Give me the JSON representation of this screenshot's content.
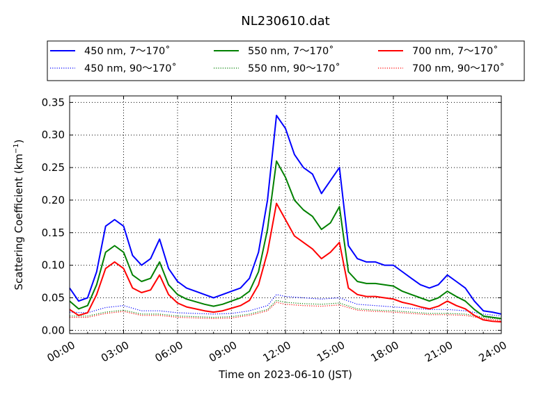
{
  "chart_data": {
    "type": "line",
    "title": "NL230610.dat",
    "xlabel": "Time on 2023-06-10 (JST)",
    "ylabel": "Scattering Coefficient (km",
    "ylabel_sup": "−1",
    "ylabel_close": ")",
    "xlim": [
      "00:00",
      "24:00"
    ],
    "ylim": [
      -0.005,
      0.36
    ],
    "x_tick_labels": [
      "00:00",
      "03:00",
      "06:00",
      "09:00",
      "12:00",
      "15:00",
      "18:00",
      "21:00",
      "24:00"
    ],
    "y_tick_labels": [
      "0.00",
      "0.05",
      "0.10",
      "0.15",
      "0.20",
      "0.25",
      "0.30",
      "0.35"
    ],
    "grid": true,
    "legend_position": "top, above plot",
    "legend_columns": 3,
    "series": [
      {
        "name": "450 nm, 7～170˚",
        "color": "#0000ff",
        "style": "solid",
        "x": [
          "00:00",
          "00:30",
          "01:00",
          "01:30",
          "02:00",
          "02:30",
          "03:00",
          "03:30",
          "04:00",
          "04:30",
          "05:00",
          "05:30",
          "06:00",
          "06:30",
          "07:00",
          "07:30",
          "08:00",
          "08:30",
          "09:00",
          "09:30",
          "10:00",
          "10:30",
          "11:00",
          "11:30",
          "12:00",
          "12:30",
          "13:00",
          "13:30",
          "14:00",
          "14:30",
          "15:00",
          "15:30",
          "16:00",
          "16:30",
          "17:00",
          "17:30",
          "18:00",
          "18:30",
          "19:00",
          "19:30",
          "20:00",
          "20:30",
          "21:00",
          "21:30",
          "22:00",
          "22:30",
          "23:00",
          "23:30",
          "24:00"
        ],
        "values": [
          0.065,
          0.045,
          0.05,
          0.09,
          0.16,
          0.17,
          0.16,
          0.115,
          0.1,
          0.11,
          0.14,
          0.095,
          0.075,
          0.065,
          0.06,
          0.055,
          0.05,
          0.055,
          0.06,
          0.065,
          0.08,
          0.12,
          0.2,
          0.33,
          0.31,
          0.27,
          0.25,
          0.24,
          0.21,
          0.23,
          0.25,
          0.13,
          0.11,
          0.105,
          0.105,
          0.1,
          0.1,
          0.09,
          0.08,
          0.07,
          0.065,
          0.07,
          0.085,
          0.075,
          0.065,
          0.045,
          0.03,
          0.028,
          0.025
        ]
      },
      {
        "name": "550 nm, 7～170˚",
        "color": "#008000",
        "style": "solid",
        "x": [
          "00:00",
          "00:30",
          "01:00",
          "01:30",
          "02:00",
          "02:30",
          "03:00",
          "03:30",
          "04:00",
          "04:30",
          "05:00",
          "05:30",
          "06:00",
          "06:30",
          "07:00",
          "07:30",
          "08:00",
          "08:30",
          "09:00",
          "09:30",
          "10:00",
          "10:30",
          "11:00",
          "11:30",
          "12:00",
          "12:30",
          "13:00",
          "13:30",
          "14:00",
          "14:30",
          "15:00",
          "15:30",
          "16:00",
          "16:30",
          "17:00",
          "17:30",
          "18:00",
          "18:30",
          "19:00",
          "19:30",
          "20:00",
          "20:30",
          "21:00",
          "21:30",
          "22:00",
          "22:30",
          "23:00",
          "23:30",
          "24:00"
        ],
        "values": [
          0.045,
          0.033,
          0.038,
          0.07,
          0.12,
          0.13,
          0.12,
          0.085,
          0.075,
          0.08,
          0.105,
          0.07,
          0.055,
          0.048,
          0.044,
          0.04,
          0.037,
          0.04,
          0.045,
          0.05,
          0.06,
          0.09,
          0.155,
          0.26,
          0.235,
          0.2,
          0.185,
          0.175,
          0.155,
          0.165,
          0.19,
          0.09,
          0.075,
          0.072,
          0.072,
          0.07,
          0.068,
          0.06,
          0.055,
          0.05,
          0.045,
          0.05,
          0.06,
          0.052,
          0.045,
          0.032,
          0.022,
          0.02,
          0.018
        ]
      },
      {
        "name": "700 nm, 7～170˚",
        "color": "#ff0000",
        "style": "solid",
        "x": [
          "00:00",
          "00:30",
          "01:00",
          "01:30",
          "02:00",
          "02:30",
          "03:00",
          "03:30",
          "04:00",
          "04:30",
          "05:00",
          "05:30",
          "06:00",
          "06:30",
          "07:00",
          "07:30",
          "08:00",
          "08:30",
          "09:00",
          "09:30",
          "10:00",
          "10:30",
          "11:00",
          "11:30",
          "12:00",
          "12:30",
          "13:00",
          "13:30",
          "14:00",
          "14:30",
          "15:00",
          "15:30",
          "16:00",
          "16:30",
          "17:00",
          "17:30",
          "18:00",
          "18:30",
          "19:00",
          "19:30",
          "20:00",
          "20:30",
          "21:00",
          "21:30",
          "22:00",
          "22:30",
          "23:00",
          "23:30",
          "24:00"
        ],
        "values": [
          0.032,
          0.023,
          0.027,
          0.055,
          0.095,
          0.105,
          0.095,
          0.065,
          0.058,
          0.062,
          0.085,
          0.055,
          0.042,
          0.036,
          0.033,
          0.03,
          0.028,
          0.03,
          0.034,
          0.038,
          0.046,
          0.07,
          0.12,
          0.195,
          0.17,
          0.145,
          0.135,
          0.125,
          0.11,
          0.12,
          0.135,
          0.065,
          0.055,
          0.052,
          0.052,
          0.05,
          0.048,
          0.043,
          0.04,
          0.036,
          0.033,
          0.037,
          0.045,
          0.038,
          0.033,
          0.023,
          0.016,
          0.014,
          0.013
        ]
      },
      {
        "name": "450 nm, 90～170˚",
        "color": "#0000ff",
        "style": "dotted",
        "x": [
          "00:00",
          "01:00",
          "02:00",
          "03:00",
          "04:00",
          "05:00",
          "06:00",
          "07:00",
          "08:00",
          "09:00",
          "10:00",
          "11:00",
          "11:30",
          "12:00",
          "13:00",
          "14:00",
          "15:00",
          "16:00",
          "17:00",
          "18:00",
          "19:00",
          "20:00",
          "21:00",
          "22:00",
          "23:00",
          "24:00"
        ],
        "values": [
          0.028,
          0.027,
          0.035,
          0.038,
          0.03,
          0.03,
          0.027,
          0.026,
          0.025,
          0.026,
          0.03,
          0.038,
          0.055,
          0.052,
          0.05,
          0.048,
          0.05,
          0.04,
          0.038,
          0.036,
          0.034,
          0.032,
          0.032,
          0.03,
          0.025,
          0.022
        ]
      },
      {
        "name": "550 nm, 90～170˚",
        "color": "#008000",
        "style": "dotted",
        "x": [
          "00:00",
          "01:00",
          "02:00",
          "03:00",
          "04:00",
          "05:00",
          "06:00",
          "07:00",
          "08:00",
          "09:00",
          "10:00",
          "11:00",
          "11:30",
          "12:00",
          "13:00",
          "14:00",
          "15:00",
          "16:00",
          "17:00",
          "18:00",
          "19:00",
          "20:00",
          "21:00",
          "22:00",
          "23:00",
          "24:00"
        ],
        "values": [
          0.022,
          0.022,
          0.028,
          0.031,
          0.025,
          0.025,
          0.022,
          0.021,
          0.02,
          0.021,
          0.025,
          0.032,
          0.046,
          0.043,
          0.041,
          0.04,
          0.042,
          0.033,
          0.031,
          0.03,
          0.028,
          0.026,
          0.026,
          0.025,
          0.02,
          0.017
        ]
      },
      {
        "name": "700 nm, 90～170˚",
        "color": "#ff0000",
        "style": "dotted",
        "x": [
          "00:00",
          "01:00",
          "02:00",
          "03:00",
          "04:00",
          "05:00",
          "06:00",
          "07:00",
          "08:00",
          "09:00",
          "10:00",
          "11:00",
          "11:30",
          "12:00",
          "13:00",
          "14:00",
          "15:00",
          "16:00",
          "17:00",
          "18:00",
          "19:00",
          "20:00",
          "21:00",
          "22:00",
          "23:00",
          "24:00"
        ],
        "values": [
          0.02,
          0.02,
          0.026,
          0.029,
          0.023,
          0.023,
          0.02,
          0.019,
          0.018,
          0.019,
          0.023,
          0.03,
          0.043,
          0.04,
          0.038,
          0.037,
          0.039,
          0.031,
          0.029,
          0.028,
          0.026,
          0.024,
          0.024,
          0.023,
          0.018,
          0.015
        ]
      }
    ]
  }
}
